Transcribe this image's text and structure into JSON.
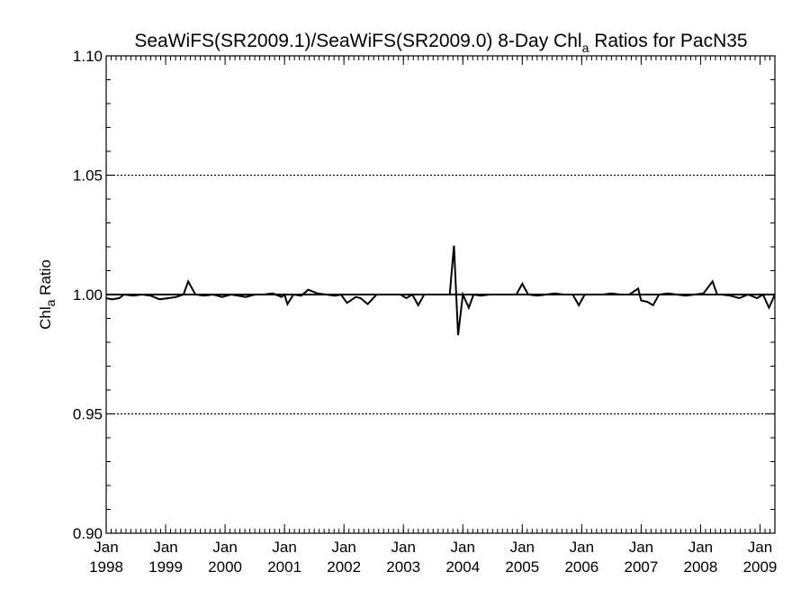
{
  "chart_data": {
    "type": "line",
    "title": {
      "prefix": "SeaWiFS(SR2009.1)/SeaWiFS(SR2009.0) 8-Day Chl",
      "subscript": "a",
      "suffix": " Ratios for PacN35"
    },
    "ylabel": {
      "prefix": "Chl",
      "subscript": "a",
      "suffix": " Ratio"
    },
    "xlim": [
      1998.0,
      2009.25
    ],
    "ylim": [
      0.9,
      1.1
    ],
    "yticks": [
      {
        "value": 0.9,
        "label": "0.90"
      },
      {
        "value": 0.95,
        "label": "0.95"
      },
      {
        "value": 1.0,
        "label": "1.00"
      },
      {
        "value": 1.05,
        "label": "1.05"
      },
      {
        "value": 1.1,
        "label": "1.10"
      }
    ],
    "xticks": [
      {
        "value": 1998,
        "month": "Jan",
        "year": "1998"
      },
      {
        "value": 1999,
        "month": "Jan",
        "year": "1999"
      },
      {
        "value": 2000,
        "month": "Jan",
        "year": "2000"
      },
      {
        "value": 2001,
        "month": "Jan",
        "year": "2001"
      },
      {
        "value": 2002,
        "month": "Jan",
        "year": "2002"
      },
      {
        "value": 2003,
        "month": "Jan",
        "year": "2003"
      },
      {
        "value": 2004,
        "month": "Jan",
        "year": "2004"
      },
      {
        "value": 2005,
        "month": "Jan",
        "year": "2005"
      },
      {
        "value": 2006,
        "month": "Jan",
        "year": "2006"
      },
      {
        "value": 2007,
        "month": "Jan",
        "year": "2007"
      },
      {
        "value": 2008,
        "month": "Jan",
        "year": "2008"
      },
      {
        "value": 2009,
        "month": "Jan",
        "year": "2009"
      }
    ],
    "gridlines": [
      0.95,
      1.05
    ],
    "reference_line": 1.0,
    "grid": "dotted horizontal",
    "series": [
      {
        "x": [
          1998.0,
          1998.1,
          1998.22,
          1998.3,
          1998.45,
          1998.6,
          1998.75,
          1998.9,
          1999.05,
          1999.18,
          1999.3,
          1999.38,
          1999.5,
          1999.65,
          1999.8,
          1999.95,
          2000.1,
          2000.22,
          2000.35,
          2000.5,
          2000.65,
          2000.8,
          2000.95,
          2001.0,
          2001.05,
          2001.15,
          2001.28,
          2001.4,
          2001.55,
          2001.7,
          2001.85,
          2001.95,
          2002.05,
          2002.2,
          2002.28,
          2002.4,
          2002.55,
          2002.7,
          2002.85,
          2002.95,
          2003.05,
          2003.15,
          2003.25,
          2003.35,
          2003.5,
          2003.65,
          2003.78,
          2003.85,
          2003.92,
          2004.0,
          2004.1,
          2004.18,
          2004.3,
          2004.45,
          2004.6,
          2004.75,
          2004.9,
          2005.0,
          2005.1,
          2005.25,
          2005.4,
          2005.55,
          2005.7,
          2005.85,
          2005.95,
          2006.05,
          2006.2,
          2006.35,
          2006.5,
          2006.65,
          2006.8,
          2006.95,
          2007.0,
          2007.1,
          2007.2,
          2007.3,
          2007.45,
          2007.6,
          2007.75,
          2007.9,
          2008.05,
          2008.2,
          2008.28,
          2008.35,
          2008.5,
          2008.65,
          2008.8,
          2008.95,
          2009.05,
          2009.15,
          2009.25
        ],
        "y": [
          0.9985,
          0.998,
          0.9985,
          1.0,
          0.9995,
          1.0,
          0.9995,
          0.998,
          0.9985,
          0.999,
          1.0,
          1.0055,
          1.0,
          0.9995,
          1.0,
          0.999,
          1.0,
          0.9995,
          0.999,
          1.0,
          1.0,
          1.0005,
          0.999,
          1.0,
          0.996,
          1.0,
          0.9995,
          1.002,
          1.0005,
          1.0,
          0.9995,
          1.0,
          0.9965,
          0.999,
          0.9985,
          0.996,
          1.0,
          1.0,
          1.0,
          1.0,
          0.9985,
          1.0,
          0.9955,
          1.0,
          1.0,
          1.0,
          1.0,
          1.0205,
          0.983,
          1.0,
          0.9945,
          1.0,
          0.9995,
          1.0,
          1.0,
          1.0,
          1.0,
          1.0045,
          1.0,
          0.9995,
          1.0,
          1.0005,
          1.0,
          1.0,
          0.9955,
          1.0,
          1.0,
          1.0,
          1.0005,
          1.0,
          1.0,
          1.0025,
          0.9975,
          0.997,
          0.9955,
          1.0,
          1.0005,
          1.0,
          0.9995,
          1.0,
          1.0005,
          1.0055,
          1.0,
          1.0,
          0.9995,
          0.9985,
          1.0,
          0.9985,
          1.0,
          0.9945,
          1.0
        ]
      }
    ]
  }
}
